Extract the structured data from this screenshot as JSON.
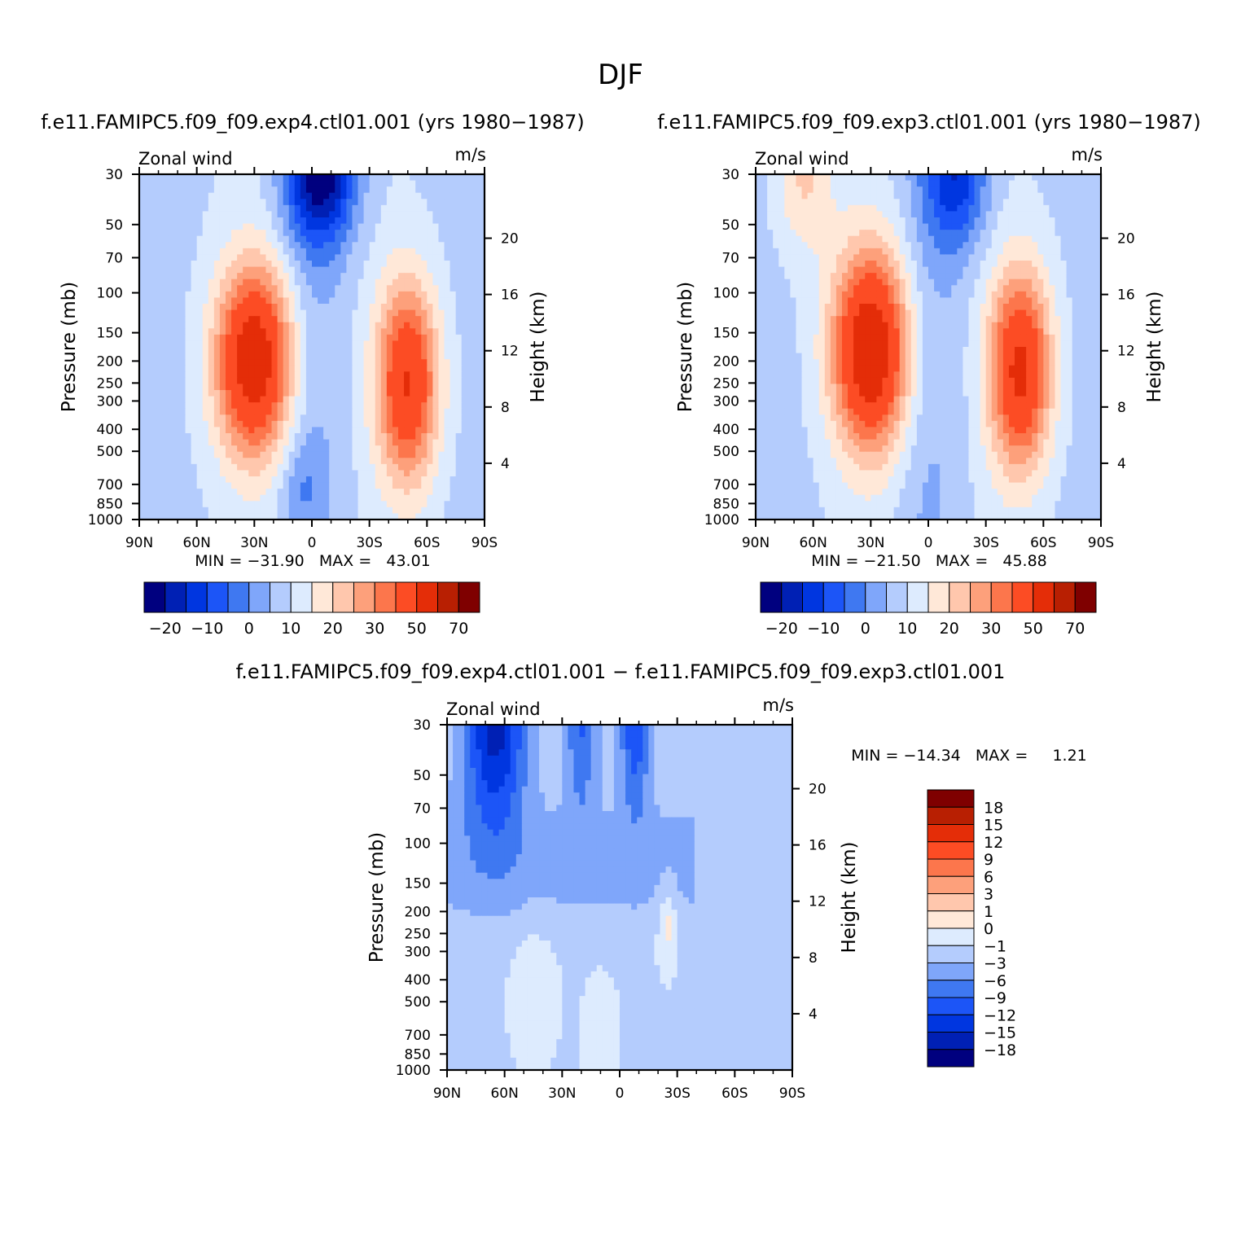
{
  "page_title": "DJF",
  "colors": {
    "panel_scale": [
      "#00007f",
      "#0020b4",
      "#0036e0",
      "#1c55f7",
      "#3f78f1",
      "#7fa6fa",
      "#b4ccfd",
      "#ddebfe",
      "#ffe8d8",
      "#ffc7ad",
      "#fda07b",
      "#fc764c",
      "#fc4c24",
      "#e42d08",
      "#b81f02",
      "#7f0000"
    ],
    "diff_scale": [
      "#00007f",
      "#0020b4",
      "#0036e0",
      "#1c55f7",
      "#3f78f1",
      "#7fa6fa",
      "#b4ccfd",
      "#ddebfe",
      "#ffe8d8",
      "#ffc7ad",
      "#fda07b",
      "#fc764c",
      "#fc4c24",
      "#e42d08",
      "#b81f02",
      "#7f0000"
    ]
  },
  "chart_data": [
    {
      "type": "heatmap",
      "title": "f.e11.FAMIPC5.f09_f09.exp4.ctl01.001 (yrs 1980−1987)",
      "left_label": "Zonal wind",
      "right_label": "m/s",
      "ylabel": "Pressure (mb)",
      "y2label": "Height (km)",
      "x_ticks": [
        "90N",
        "60N",
        "30N",
        "0",
        "30S",
        "60S",
        "90S"
      ],
      "x_range": [
        90,
        -90
      ],
      "y_ticks": [
        30,
        50,
        70,
        100,
        150,
        200,
        250,
        300,
        400,
        500,
        700,
        850,
        1000
      ],
      "y_range": [
        1000,
        30
      ],
      "y_scale": "log",
      "y2_ticks": [
        4,
        8,
        12,
        16,
        20
      ],
      "min_max_text": "MIN = −31.90   MAX =   43.01",
      "colorbar": {
        "orientation": "horizontal",
        "levels": [
          -25,
          -20,
          -15,
          -10,
          -5,
          0,
          5,
          10,
          15,
          20,
          25,
          30,
          40,
          50,
          60,
          70
        ],
        "tick_labels": [
          "−20",
          "−10",
          "0",
          "10",
          "20",
          "30",
          "50",
          "70"
        ]
      },
      "features": [
        {
          "lat": 30,
          "p": 200,
          "amp": 43,
          "w_lat": 20,
          "w_lnp": 0.95
        },
        {
          "lat": -50,
          "p": 250,
          "amp": 36,
          "w_lat": 16,
          "w_lnp": 1.0
        },
        {
          "lat": -5,
          "p": 30,
          "amp": -30,
          "w_lat": 18,
          "w_lnp": 0.7
        },
        {
          "lat": 5,
          "p": 700,
          "amp": -6,
          "w_lat": 10,
          "w_lnp": 0.5
        }
      ]
    },
    {
      "type": "heatmap",
      "title": "f.e11.FAMIPC5.f09_f09.exp3.ctl01.001 (yrs 1980−1987)",
      "left_label": "Zonal wind",
      "right_label": "m/s",
      "ylabel": "Pressure (mb)",
      "y2label": "Height (km)",
      "x_ticks": [
        "90N",
        "60N",
        "30N",
        "0",
        "30S",
        "60S",
        "90S"
      ],
      "x_range": [
        90,
        -90
      ],
      "y_ticks": [
        30,
        50,
        70,
        100,
        150,
        200,
        250,
        300,
        400,
        500,
        700,
        850,
        1000
      ],
      "y_range": [
        1000,
        30
      ],
      "y_scale": "log",
      "y2_ticks": [
        4,
        8,
        12,
        16,
        20
      ],
      "min_max_text": "MIN = −21.50   MAX =   45.88",
      "colorbar": {
        "orientation": "horizontal",
        "levels": [
          -25,
          -20,
          -15,
          -10,
          -5,
          0,
          5,
          10,
          15,
          20,
          25,
          30,
          40,
          50,
          60,
          70
        ],
        "tick_labels": [
          "−20",
          "−10",
          "0",
          "10",
          "20",
          "30",
          "50",
          "70"
        ]
      },
      "features": [
        {
          "lat": 30,
          "p": 180,
          "amp": 45,
          "w_lat": 20,
          "w_lnp": 1.0
        },
        {
          "lat": -48,
          "p": 220,
          "amp": 38,
          "w_lat": 16,
          "w_lnp": 1.0
        },
        {
          "lat": -15,
          "p": 30,
          "amp": -22,
          "w_lat": 16,
          "w_lnp": 0.75
        },
        {
          "lat": 65,
          "p": 30,
          "amp": 12,
          "w_lat": 15,
          "w_lnp": 0.8
        }
      ]
    },
    {
      "type": "heatmap",
      "title": "f.e11.FAMIPC5.f09_f09.exp4.ctl01.001 − f.e11.FAMIPC5.f09_f09.exp3.ctl01.001",
      "left_label": "Zonal wind",
      "right_label": "m/s",
      "ylabel": "Pressure (mb)",
      "y2label": "Height (km)",
      "x_ticks": [
        "90N",
        "60N",
        "30N",
        "0",
        "30S",
        "60S",
        "90S"
      ],
      "x_range": [
        90,
        -90
      ],
      "y_ticks": [
        30,
        50,
        70,
        100,
        150,
        200,
        250,
        300,
        400,
        500,
        700,
        850,
        1000
      ],
      "y_range": [
        1000,
        30
      ],
      "y_scale": "log",
      "y2_ticks": [
        4,
        8,
        12,
        16,
        20
      ],
      "min_max_text": "MIN = −14.34   MAX =     1.21",
      "colorbar": {
        "orientation": "vertical",
        "levels": [
          -18,
          -15,
          -12,
          -9,
          -6,
          -3,
          -1,
          0,
          1,
          3,
          6,
          9,
          12,
          15,
          18
        ],
        "tick_labels": [
          "18",
          "15",
          "12",
          "9",
          "6",
          "3",
          "1",
          "0",
          "−1",
          "−3",
          "−6",
          "−9",
          "−12",
          "−15",
          "−18"
        ]
      },
      "features": [
        {
          "lat": 65,
          "p": 30,
          "amp": -15,
          "w_lat": 16,
          "w_lnp": 1.1
        },
        {
          "lat": 20,
          "p": 30,
          "amp": -8,
          "w_lat": 8,
          "w_lnp": 0.9
        },
        {
          "lat": -8,
          "p": 30,
          "amp": -10,
          "w_lat": 8,
          "w_lnp": 0.9
        },
        {
          "lat": -25,
          "p": 200,
          "amp": 2.5,
          "w_lat": 6,
          "w_lnp": 0.5
        },
        {
          "lat": 45,
          "p": 400,
          "amp": 1.2,
          "w_lat": 12,
          "w_lnp": 0.8
        },
        {
          "lat": 10,
          "p": 700,
          "amp": 1.2,
          "w_lat": 8,
          "w_lnp": 0.6
        }
      ]
    }
  ]
}
